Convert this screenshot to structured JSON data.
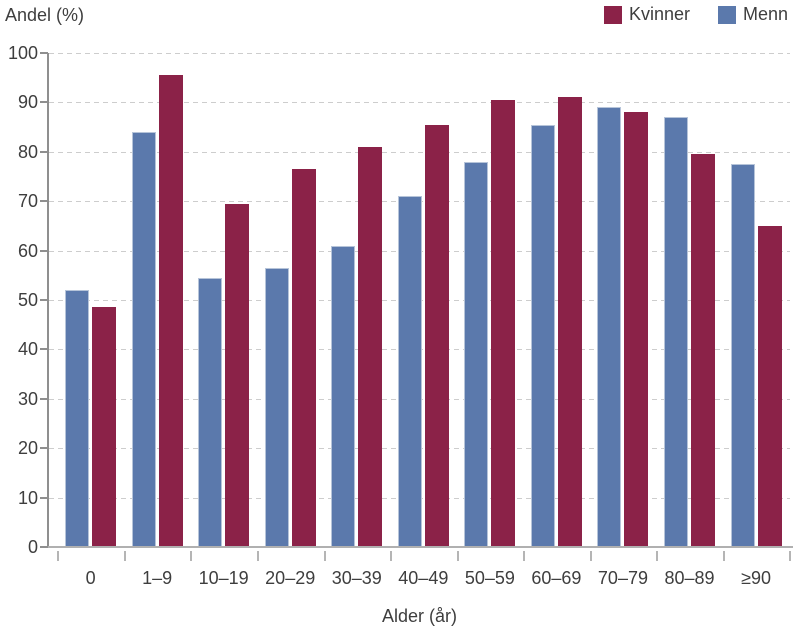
{
  "y_axis_title": "Andel (%)",
  "x_axis_title": "Alder (år)",
  "legend": [
    {
      "label": "Kvinner",
      "color": "#8B2248"
    },
    {
      "label": "Menn",
      "color": "#5B79AC"
    }
  ],
  "chart_data": {
    "type": "bar",
    "title": "",
    "ylabel": "Andel (%)",
    "xlabel": "Alder (år)",
    "ylim": [
      0,
      100
    ],
    "yticks": [
      0,
      10,
      20,
      30,
      40,
      50,
      60,
      70,
      80,
      90,
      100
    ],
    "grid": "horizontal-dashed",
    "legend_position": "top-right",
    "categories": [
      "0",
      "1–9",
      "10–19",
      "20–29",
      "30–39",
      "40–49",
      "50–59",
      "60–69",
      "70–79",
      "80–89",
      "≥90"
    ],
    "series": [
      {
        "name": "Menn",
        "color": "#5B79AC",
        "values": [
          52,
          84,
          54.5,
          56.5,
          61,
          71,
          78,
          85.5,
          89,
          87,
          77.5
        ]
      },
      {
        "name": "Kvinner",
        "color": "#8B2248",
        "values": [
          48.5,
          95.5,
          69.5,
          76.5,
          81,
          85.5,
          90.5,
          91,
          88,
          79.5,
          65
        ]
      }
    ]
  }
}
